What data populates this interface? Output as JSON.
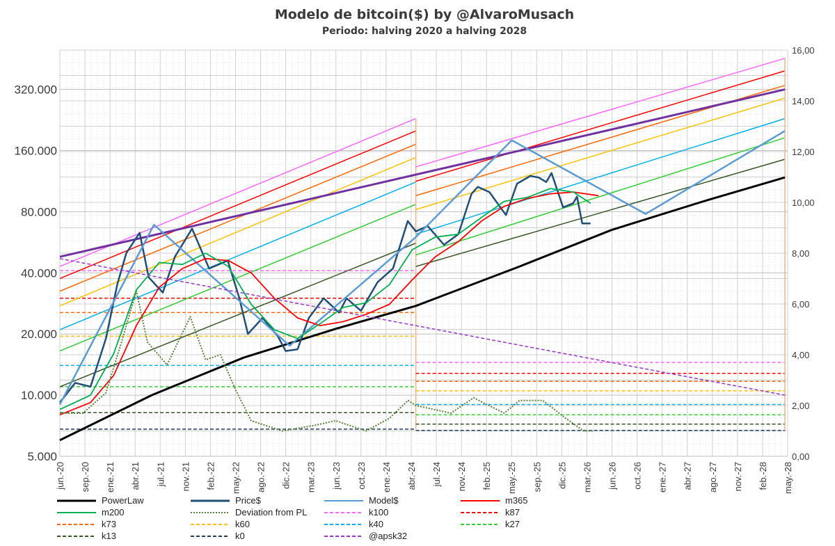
{
  "chart_data": {
    "type": "line",
    "title": "Modelo de bitcoin($) by @AlvaroMusach",
    "subtitle": "Periodo: halving 2020 a halving 2028",
    "x_range": [
      "2020-06-01",
      "2028-05-01"
    ],
    "x_ticks": [
      "jun.-20",
      "sep.-20",
      "ene.-21",
      "abr.-21",
      "jul.-21",
      "nov.-21",
      "feb.-22",
      "may.-22",
      "ago.-22",
      "dic.-22",
      "mar.-23",
      "jun.-23",
      "oct.-23",
      "ene.-24",
      "abr.-24",
      "jul.-24",
      "nov.-24",
      "feb.-25",
      "may.-25",
      "sep.-25",
      "dic.-25",
      "mar.-26",
      "jun.-26",
      "oct.-26",
      "ene.-27",
      "abr.-27",
      "ago.-27",
      "nov.-27",
      "feb.-28",
      "may.-28"
    ],
    "y_left": {
      "scale": "log2",
      "range": [
        5000,
        500000
      ],
      "ticks": [
        "5.000",
        "10.000",
        "20.000",
        "40.000",
        "80.000",
        "160.000",
        "320.000"
      ]
    },
    "y_right": {
      "scale": "linear",
      "range": [
        0,
        16
      ],
      "ticks": [
        "0,00",
        "2,00",
        "4,00",
        "6,00",
        "8,00",
        "10,00",
        "12,00",
        "14,00",
        "16,00"
      ]
    },
    "grid": true,
    "legend_position": "bottom",
    "series": [
      {
        "name": "PowerLaw",
        "axis": "left",
        "color": "#000000",
        "style": "solid",
        "points": [
          [
            "2020-06-01",
            6000
          ],
          [
            "2021-06-01",
            10000
          ],
          [
            "2022-06-01",
            15300
          ],
          [
            "2023-06-01",
            21200
          ],
          [
            "2024-04-15",
            27500
          ],
          [
            "2025-06-01",
            43000
          ],
          [
            "2026-06-01",
            65000
          ],
          [
            "2027-06-01",
            90000
          ],
          [
            "2028-04-20",
            118000
          ]
        ]
      },
      {
        "name": "Price$",
        "axis": "left",
        "color": "#1f4e79",
        "style": "solid",
        "points": [
          [
            "2020-06-01",
            9200
          ],
          [
            "2020-08-01",
            11500
          ],
          [
            "2020-10-01",
            11000
          ],
          [
            "2020-12-01",
            19000
          ],
          [
            "2021-01-15",
            35000
          ],
          [
            "2021-02-20",
            50000
          ],
          [
            "2021-04-14",
            63000
          ],
          [
            "2021-05-20",
            38000
          ],
          [
            "2021-07-15",
            32000
          ],
          [
            "2021-09-01",
            48000
          ],
          [
            "2021-11-08",
            66000
          ],
          [
            "2022-01-15",
            42000
          ],
          [
            "2022-03-30",
            46000
          ],
          [
            "2022-05-15",
            30000
          ],
          [
            "2022-06-18",
            20000
          ],
          [
            "2022-08-15",
            24000
          ],
          [
            "2022-10-15",
            19500
          ],
          [
            "2022-11-15",
            16500
          ],
          [
            "2023-01-01",
            16800
          ],
          [
            "2023-02-15",
            24000
          ],
          [
            "2023-04-15",
            30000
          ],
          [
            "2023-06-15",
            25500
          ],
          [
            "2023-07-15",
            30000
          ],
          [
            "2023-09-10",
            26000
          ],
          [
            "2023-11-15",
            36000
          ],
          [
            "2024-01-15",
            42000
          ],
          [
            "2024-03-14",
            72000
          ],
          [
            "2024-04-15",
            64000
          ],
          [
            "2024-06-01",
            68000
          ],
          [
            "2024-08-05",
            55000
          ],
          [
            "2024-10-01",
            62000
          ],
          [
            "2024-11-22",
            98000
          ],
          [
            "2024-12-17",
            106000
          ],
          [
            "2025-02-01",
            100000
          ],
          [
            "2025-04-08",
            77000
          ],
          [
            "2025-05-22",
            110000
          ],
          [
            "2025-07-14",
            120000
          ],
          [
            "2025-08-15",
            118000
          ],
          [
            "2025-09-15",
            112000
          ],
          [
            "2025-10-06",
            124000
          ],
          [
            "2025-11-21",
            84000
          ],
          [
            "2025-12-31",
            88000
          ],
          [
            "2026-01-15",
            95000
          ],
          [
            "2026-02-05",
            70000
          ],
          [
            "2026-03-10",
            70000
          ]
        ]
      },
      {
        "name": "Model$",
        "axis": "left",
        "color": "#5b9bd5",
        "style": "solid",
        "points": [
          [
            "2020-06-01",
            9000
          ],
          [
            "2021-06-10",
            69000
          ],
          [
            "2022-12-01",
            17500
          ],
          [
            "2024-04-15",
            60000
          ],
          [
            "2025-05-01",
            180000
          ],
          [
            "2026-10-15",
            78000
          ],
          [
            "2028-04-20",
            200000
          ]
        ]
      },
      {
        "name": "m365",
        "axis": "left",
        "color": "#ff0000",
        "style": "solid",
        "points": [
          [
            "2020-06-01",
            8000
          ],
          [
            "2020-10-01",
            9200
          ],
          [
            "2021-01-01",
            12500
          ],
          [
            "2021-04-01",
            22000
          ],
          [
            "2021-07-01",
            34000
          ],
          [
            "2021-10-01",
            42000
          ],
          [
            "2022-01-01",
            47000
          ],
          [
            "2022-04-01",
            46000
          ],
          [
            "2022-07-01",
            40000
          ],
          [
            "2022-10-01",
            30000
          ],
          [
            "2023-01-01",
            24000
          ],
          [
            "2023-04-01",
            22000
          ],
          [
            "2023-07-01",
            23000
          ],
          [
            "2023-10-01",
            25000
          ],
          [
            "2024-01-01",
            28000
          ],
          [
            "2024-04-01",
            37000
          ],
          [
            "2024-07-01",
            48000
          ],
          [
            "2024-10-01",
            57000
          ],
          [
            "2025-01-01",
            72000
          ],
          [
            "2025-04-01",
            85000
          ],
          [
            "2025-07-01",
            93000
          ],
          [
            "2025-10-01",
            98000
          ],
          [
            "2026-01-01",
            100000
          ],
          [
            "2026-04-10",
            96000
          ]
        ]
      },
      {
        "name": "m200",
        "axis": "left",
        "color": "#00b050",
        "style": "solid",
        "points": [
          [
            "2020-06-01",
            8500
          ],
          [
            "2020-10-01",
            10000
          ],
          [
            "2021-01-01",
            16000
          ],
          [
            "2021-04-01",
            33000
          ],
          [
            "2021-07-01",
            45000
          ],
          [
            "2021-10-01",
            44000
          ],
          [
            "2022-01-01",
            50000
          ],
          [
            "2022-04-01",
            43000
          ],
          [
            "2022-07-01",
            28000
          ],
          [
            "2022-10-01",
            21000
          ],
          [
            "2023-01-01",
            19000
          ],
          [
            "2023-04-01",
            22500
          ],
          [
            "2023-07-01",
            27000
          ],
          [
            "2023-10-01",
            28500
          ],
          [
            "2024-01-01",
            35000
          ],
          [
            "2024-04-01",
            52000
          ],
          [
            "2024-07-01",
            60000
          ],
          [
            "2024-10-01",
            62000
          ],
          [
            "2025-01-01",
            75000
          ],
          [
            "2025-04-01",
            90000
          ],
          [
            "2025-07-01",
            94000
          ],
          [
            "2025-10-01",
            104000
          ],
          [
            "2026-01-01",
            100000
          ],
          [
            "2026-03-10",
            88000
          ]
        ]
      },
      {
        "name": "Deviation from PL",
        "axis": "right",
        "color": "#548235",
        "style": "dotted",
        "points": [
          [
            "2020-06-01",
            1.7
          ],
          [
            "2020-09-01",
            1.7
          ],
          [
            "2020-12-01",
            2.5
          ],
          [
            "2021-02-01",
            4.5
          ],
          [
            "2021-04-01",
            6.5
          ],
          [
            "2021-05-15",
            4.5
          ],
          [
            "2021-08-01",
            3.6
          ],
          [
            "2021-11-01",
            5.5
          ],
          [
            "2022-01-01",
            3.8
          ],
          [
            "2022-03-01",
            4.0
          ],
          [
            "2022-05-01",
            2.6
          ],
          [
            "2022-07-01",
            1.4
          ],
          [
            "2022-11-01",
            1.0
          ],
          [
            "2023-03-01",
            1.2
          ],
          [
            "2023-06-01",
            1.4
          ],
          [
            "2023-10-01",
            1.0
          ],
          [
            "2024-01-01",
            1.5
          ],
          [
            "2024-03-15",
            2.2
          ],
          [
            "2024-04-15",
            2.0
          ],
          [
            "2024-09-01",
            1.7
          ],
          [
            "2024-12-01",
            2.3
          ],
          [
            "2025-04-01",
            1.7
          ],
          [
            "2025-06-01",
            2.2
          ],
          [
            "2025-09-01",
            2.2
          ],
          [
            "2025-12-01",
            1.5
          ],
          [
            "2026-02-10",
            1.0
          ],
          [
            "2026-03-20",
            1.0
          ]
        ]
      },
      {
        "name": "k100",
        "axis": "left",
        "color": "#ff66ff",
        "style": "dashed"
      },
      {
        "name": "k87",
        "axis": "left",
        "color": "#ff0000",
        "style": "dashed"
      },
      {
        "name": "k73",
        "axis": "left",
        "color": "#ff6600",
        "style": "dashed"
      },
      {
        "name": "k60",
        "axis": "left",
        "color": "#ffc000",
        "style": "dashed"
      },
      {
        "name": "k40",
        "axis": "left",
        "color": "#00b0f0",
        "style": "dashed"
      },
      {
        "name": "k27",
        "axis": "left",
        "color": "#33cc33",
        "style": "dashed"
      },
      {
        "name": "k13",
        "axis": "left",
        "color": "#375623",
        "style": "dashed"
      },
      {
        "name": "k0",
        "axis": "left",
        "color": "#1f3864",
        "style": "dashed"
      },
      {
        "name": "@apsk32",
        "axis": "left",
        "color": "#9933cc",
        "style": "dashed",
        "points": [
          [
            "2020-06-01",
            47000
          ],
          [
            "2028-04-20",
            10000
          ]
        ]
      }
    ],
    "halving_bands": [
      {
        "start": "2020-06-01",
        "end": "2024-04-15",
        "levels": [
          {
            "name": "k100",
            "start": 43000,
            "end": 230000,
            "flat": 41000
          },
          {
            "name": "k87",
            "start": 37500,
            "end": 200000,
            "flat": 30000
          },
          {
            "name": "k73",
            "start": 32500,
            "end": 172000,
            "flat": 25500
          },
          {
            "name": "k60",
            "start": 27500,
            "end": 148000,
            "flat": 19500
          },
          {
            "name": "k40",
            "start": 21000,
            "end": 112000,
            "flat": 14000
          },
          {
            "name": "k27",
            "start": 16500,
            "end": 87000,
            "flat": 11000
          },
          {
            "name": "k13",
            "start": 11000,
            "end": 56000,
            "flat": 8200
          },
          {
            "name": "k0",
            "start": 7000,
            "end": 30000,
            "flat": 6800
          }
        ]
      },
      {
        "start": "2024-04-15",
        "end": "2028-04-20",
        "levels": [
          {
            "name": "k100",
            "start": 133000,
            "end": 455000,
            "flat": 14500
          },
          {
            "name": "k87",
            "start": 113000,
            "end": 395000,
            "flat": 12800
          },
          {
            "name": "k73",
            "start": 96000,
            "end": 335000,
            "flat": 11700
          },
          {
            "name": "k60",
            "start": 82000,
            "end": 290000,
            "flat": 10500
          },
          {
            "name": "k40",
            "start": 62000,
            "end": 230000,
            "flat": 9000
          },
          {
            "name": "k27",
            "start": 49000,
            "end": 185000,
            "flat": 8000
          },
          {
            "name": "k13",
            "start": 43000,
            "end": 145000,
            "flat": 7200
          },
          {
            "name": "k0",
            "start": 30000,
            "end": 118000,
            "flat": 6700
          }
        ]
      }
    ],
    "trend_line": {
      "color": "#7030a0",
      "points": [
        [
          "2020-06-01",
          48000
        ],
        [
          "2028-04-20",
          320000
        ]
      ]
    }
  }
}
